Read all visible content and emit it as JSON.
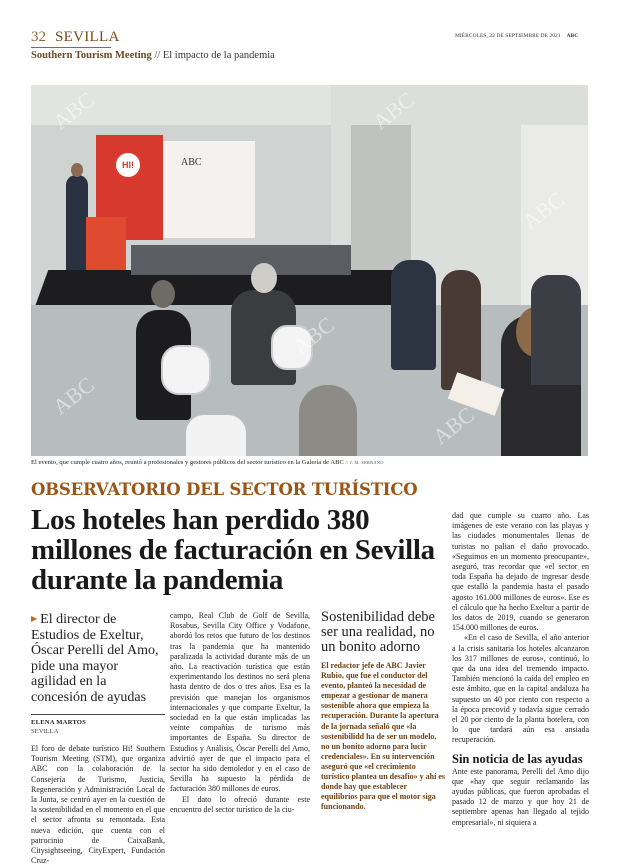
{
  "header": {
    "page_number": "32",
    "section": "SEVILLA",
    "series": "Southern Tourism Meeting",
    "subtitle": "// El impacto de la pandemia",
    "date": "MIÉRCOLES, 22 DE SEPTIEMBRE DE 2021",
    "brand": "ABC"
  },
  "photo": {
    "caption": "El evento, que cumple cuatro años, reunió a profesionales y gestores públicos del sector turístico en la Galería de ABC",
    "credit": "// J. M. SERRANO",
    "screen_logo": "HI!",
    "screen_brand": "ABC",
    "watermark": "ABC"
  },
  "article": {
    "kicker": "OBSERVATORIO DEL SECTOR TURÍSTICO",
    "headline": "Los hoteles han perdido 380 millones de facturación en Sevilla durante la pandemia",
    "deck": "El director de Estudios de Exeltur, Óscar Perelli del Amo, pide una mayor agilidad en la concesión de ayudas",
    "byline": "ELENA MARTOS",
    "byline_city": "SEVILLA",
    "col1": [
      "El foro de debate turístico Hi! Southern Tourism Meeting (STM), que organiza ABC con la colaboración de la Consejería de Turismo, Justicia, Regeneración y Administración Local de la Junta, se centró ayer en la cuestión de la sostenibilidad en el momento en el que el sector afronta su remontada. Esta nueva edición, que cuenta con el patrocinio de CaixaBank, Citysightseeing, CityExpert, Fundación Cruz-"
    ],
    "col2": [
      "campo, Real Club de Golf de Sevilla, Rosabus, Sevilla City Office y Vodafone, abordó los retos que futuro de los destinos tras la pandemia que ha mantenido paralizada la actividad durante más de un año. La reactivación turística que están experimentando los destinos no será plena hasta dentro de dos o tres años. Esa es la previsión que manejan los organismos internacionales y que comparte Exeltur, la sociedad en la que están implicadas las veinte compañías de turismo más importantes de España. Su director de Estudios y Análisis, Óscar Perelli del Amo, advirtió ayer de que el impacto para el sector ha sido demoledor y en el caso de Sevilla ha supuesto la pérdida de facturación 380 millones de euros.",
      "El dato lo ofreció durante este encuentro del sector turístico de la ciu-"
    ],
    "col4": [
      "dad que cumple su cuarto año. Las imágenes de este verano con las playas y las ciudades monumentales llenas de turistas no palian el daño provocado. «Seguimos en un momento preocupante», aseguró, tras recordar que «el sector en toda España ha dejado de ingresar desde que estalló la pandemia hasta el pasado agosto 161.000 millones de euros». Ese es el cálculo que ha hecho Exeltur a partir de los datos de 2019, cuando se generaron 154.000 millones de euros.",
      "«En el caso de Sevilla, el año anterior a la crisis sanitaria los hoteles alcanzaron los 317 millones de euros», continuó, lo que da una idea del tremendo impacto. También mencionó la caída del empleo en este ámbito, que en la capital andaluza ha supuesto un 40 por ciento con respecto a la época precovid y todavía sigue cerrado el 20 por ciento de la planta hotelera, con lo que tardará aún esa ansiada recuperación."
    ],
    "subhead": "Sin noticia de las ayudas",
    "col4b": [
      "Ante este panorama, Perelli del Amo dijo que «hay que seguir reclamando las ayudas públicas, que fueron aprobadas el pasado 12 de marzo y que hoy 21 de septiembre apenas han llegado al tejido empresarial», ni siquiera a"
    ]
  },
  "sidebar": {
    "title": "Sostenibilidad debe ser una realidad, no un bonito adorno",
    "body": "El redactor jefe de ABC Javier Rubio, que fue el conductor del evento, planteó la necesidad de empezar a gestionar de manera sostenible ahora que empieza la recuperación. Durante la apertura de la jornada señaló que «la sostenibilidd ha de ser un modelo, no un bonito adorno para lucir credenciales». En su intervención aseguró que «el crecimiento turístico plantea un desafío» y ahí es donde hay que establecer equilibrios para que el motor siga funcionando."
  },
  "colors": {
    "section": "#7a4a1a",
    "kicker": "#9a5517",
    "sidebar_text": "#6e3f12",
    "screen_red": "#d8392f"
  }
}
